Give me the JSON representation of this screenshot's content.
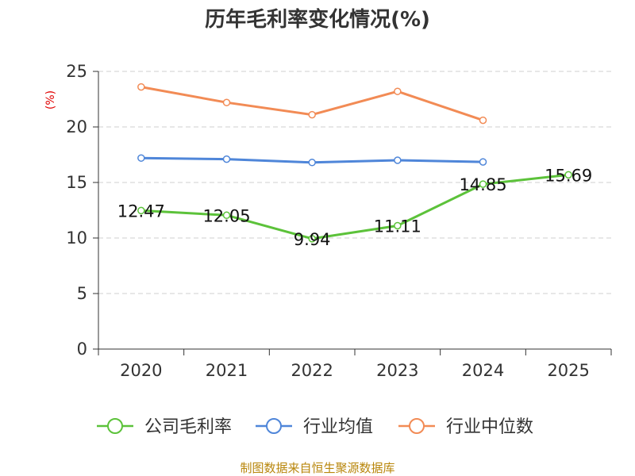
{
  "chart_data": {
    "type": "line",
    "title": "历年毛利率变化情况(%)",
    "ylabel": "(%)",
    "categories": [
      "2020",
      "2021",
      "2022",
      "2023",
      "2024",
      "2025"
    ],
    "ylim": [
      0,
      25
    ],
    "yticks": [
      "0",
      "5",
      "10",
      "15",
      "20",
      "25"
    ],
    "grid": true,
    "legend_position": "bottom",
    "series": [
      {
        "name": "公司毛利率",
        "color": "#5cc23a",
        "values": [
          12.47,
          12.05,
          9.94,
          11.11,
          14.85,
          15.69
        ],
        "labels": [
          "12.47",
          "12.05",
          "9.94",
          "11.11",
          "14.85",
          "15.69"
        ]
      },
      {
        "name": "行业均值",
        "color": "#4f86d9",
        "values": [
          17.2,
          17.1,
          16.8,
          17.0,
          16.85,
          null
        ]
      },
      {
        "name": "行业中位数",
        "color": "#f28b55",
        "values": [
          23.6,
          22.2,
          21.1,
          23.2,
          20.6,
          null
        ]
      }
    ],
    "source": "制图数据来自恒生聚源数据库"
  }
}
